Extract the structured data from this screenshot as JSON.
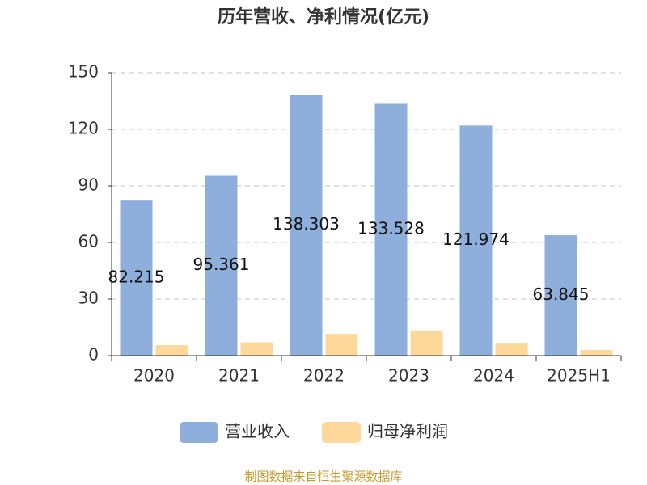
{
  "chart_data": {
    "type": "bar",
    "title": "历年营收、净利情况(亿元)",
    "categories": [
      "2020",
      "2021",
      "2022",
      "2023",
      "2024",
      "2025H1"
    ],
    "series": [
      {
        "name": "营业收入",
        "color": "#8eaedb",
        "values": [
          82.215,
          95.361,
          138.303,
          133.528,
          121.974,
          63.845
        ],
        "show_labels": true
      },
      {
        "name": "归母净利润",
        "color": "#fdd89a",
        "values": [
          5.5,
          7.0,
          11.5,
          13.0,
          6.8,
          3.0
        ],
        "show_labels": false
      }
    ],
    "ylim": [
      0,
      150
    ],
    "yticks": [
      0,
      30,
      60,
      90,
      120,
      150
    ],
    "grid": true,
    "legend": "bottom",
    "source": "制图数据来自恒生聚源数据库"
  }
}
